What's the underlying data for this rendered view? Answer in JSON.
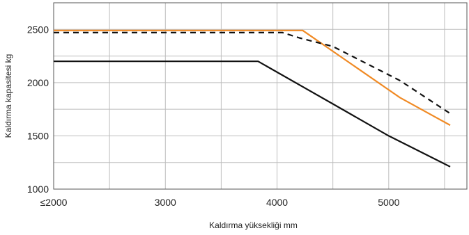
{
  "chart_data": {
    "type": "line",
    "title": "",
    "xlabel": "Kaldırma yüksekliği mm",
    "ylabel": "Kaldırma kapasitesi kg",
    "xlim": [
      2000,
      5700
    ],
    "ylim": [
      1000,
      2750
    ],
    "grid": true,
    "x_ticks": [
      {
        "value": 2000,
        "label": "≤2000"
      },
      {
        "value": 3000,
        "label": "3000"
      },
      {
        "value": 4000,
        "label": "4000"
      },
      {
        "value": 5000,
        "label": "5000"
      }
    ],
    "y_ticks": [
      {
        "value": 1000,
        "label": "1000"
      },
      {
        "value": 1500,
        "label": "1500"
      },
      {
        "value": 2000,
        "label": "2000"
      },
      {
        "value": 2500,
        "label": "2500"
      }
    ],
    "series": [
      {
        "color": "#f08a24",
        "dash": "solid",
        "points": [
          [
            2000,
            2490
          ],
          [
            4230,
            2490
          ],
          [
            4520,
            2280
          ],
          [
            5100,
            1860
          ],
          [
            5550,
            1600
          ]
        ]
      },
      {
        "color": "#111111",
        "dash": "dashed",
        "points": [
          [
            2000,
            2470
          ],
          [
            4050,
            2470
          ],
          [
            4200,
            2420
          ],
          [
            4500,
            2340
          ],
          [
            5100,
            2020
          ],
          [
            5550,
            1710
          ]
        ]
      },
      {
        "color": "#111111",
        "dash": "solid",
        "points": [
          [
            2000,
            2200
          ],
          [
            3830,
            2200
          ],
          [
            4500,
            1800
          ],
          [
            5000,
            1500
          ],
          [
            5550,
            1210
          ]
        ]
      }
    ]
  }
}
